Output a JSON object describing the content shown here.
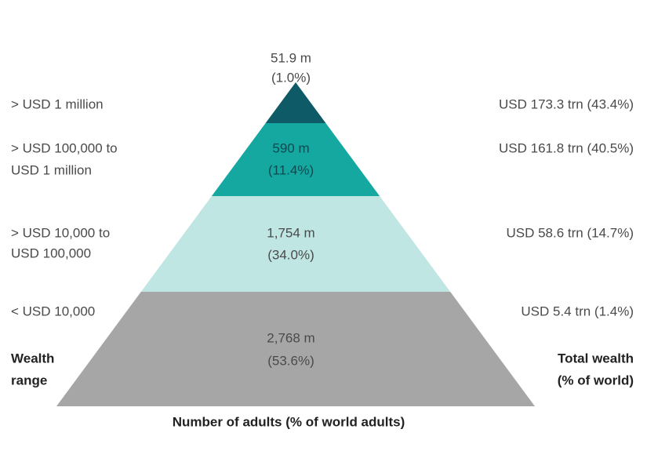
{
  "diagram": {
    "caption": "Number of adults (% of world adults)",
    "left_heading": [
      "Wealth",
      "range"
    ],
    "right_heading": [
      "Total wealth",
      "(% of world)"
    ],
    "tiers": [
      {
        "range": [
          "> USD 1 million"
        ],
        "adults": [
          "51.9 m",
          "(1.0%)"
        ],
        "wealth": "USD 173.3 trn (43.4%)",
        "color": "#0e5a66"
      },
      {
        "range": [
          "> USD 100,000 to",
          "USD 1 million"
        ],
        "adults": [
          "590 m",
          "(11.4%)"
        ],
        "wealth": "USD 161.8 trn (40.5%)",
        "color": "#14a8a0"
      },
      {
        "range": [
          "> USD 10,000 to",
          "USD 100,000"
        ],
        "adults": [
          "1,754 m",
          "(34.0%)"
        ],
        "wealth": "USD 58.6 trn (14.7%)",
        "color": "#bfe6e3"
      },
      {
        "range": [
          "< USD 10,000"
        ],
        "adults": [
          "2,768 m",
          "(53.6%)"
        ],
        "wealth": "USD 5.4 trn (1.4%)",
        "color": "#a6a6a6"
      }
    ]
  }
}
